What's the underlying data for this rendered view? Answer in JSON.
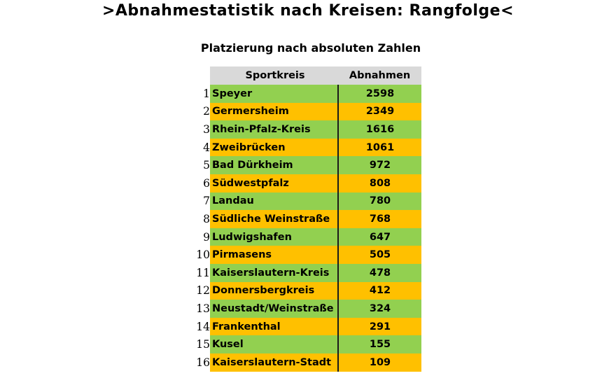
{
  "title": ">Abnahmestatistik nach Kreisen: Rangfolge<",
  "subtitle": "Platzierung nach absoluten Zahlen",
  "table": {
    "headers": {
      "name": "Sportkreis",
      "value": "Abnahmen"
    },
    "rows": [
      {
        "rank": "1",
        "name": "Speyer",
        "value": "2598",
        "color": "green"
      },
      {
        "rank": "2",
        "name": "Germersheim",
        "value": "2349",
        "color": "orange"
      },
      {
        "rank": "3",
        "name": "Rhein-Pfalz-Kreis",
        "value": "1616",
        "color": "green"
      },
      {
        "rank": "4",
        "name": "Zweibrücken",
        "value": "1061",
        "color": "orange"
      },
      {
        "rank": "5",
        "name": "Bad Dürkheim",
        "value": "972",
        "color": "green"
      },
      {
        "rank": "6",
        "name": "Südwestpfalz",
        "value": "808",
        "color": "orange"
      },
      {
        "rank": "7",
        "name": "Landau",
        "value": "780",
        "color": "green"
      },
      {
        "rank": "8",
        "name": "Südliche Weinstraße",
        "value": "768",
        "color": "orange"
      },
      {
        "rank": "9",
        "name": "Ludwigshafen",
        "value": "647",
        "color": "green"
      },
      {
        "rank": "10",
        "name": "Pirmasens",
        "value": "505",
        "color": "orange"
      },
      {
        "rank": "11",
        "name": "Kaiserslautern-Kreis",
        "value": "478",
        "color": "green"
      },
      {
        "rank": "12",
        "name": "Donnersbergkreis",
        "value": "412",
        "color": "orange"
      },
      {
        "rank": "13",
        "name": "Neustadt/Weinstraße",
        "value": "324",
        "color": "green"
      },
      {
        "rank": "14",
        "name": "Frankenthal",
        "value": "291",
        "color": "orange"
      },
      {
        "rank": "15",
        "name": "Kusel",
        "value": "155",
        "color": "green"
      },
      {
        "rank": "16",
        "name": "Kaiserslautern-Stadt",
        "value": "109",
        "color": "orange"
      }
    ]
  },
  "colors": {
    "green": "#92d050",
    "orange": "#ffc000",
    "header_bg": "#d9d9d9"
  }
}
